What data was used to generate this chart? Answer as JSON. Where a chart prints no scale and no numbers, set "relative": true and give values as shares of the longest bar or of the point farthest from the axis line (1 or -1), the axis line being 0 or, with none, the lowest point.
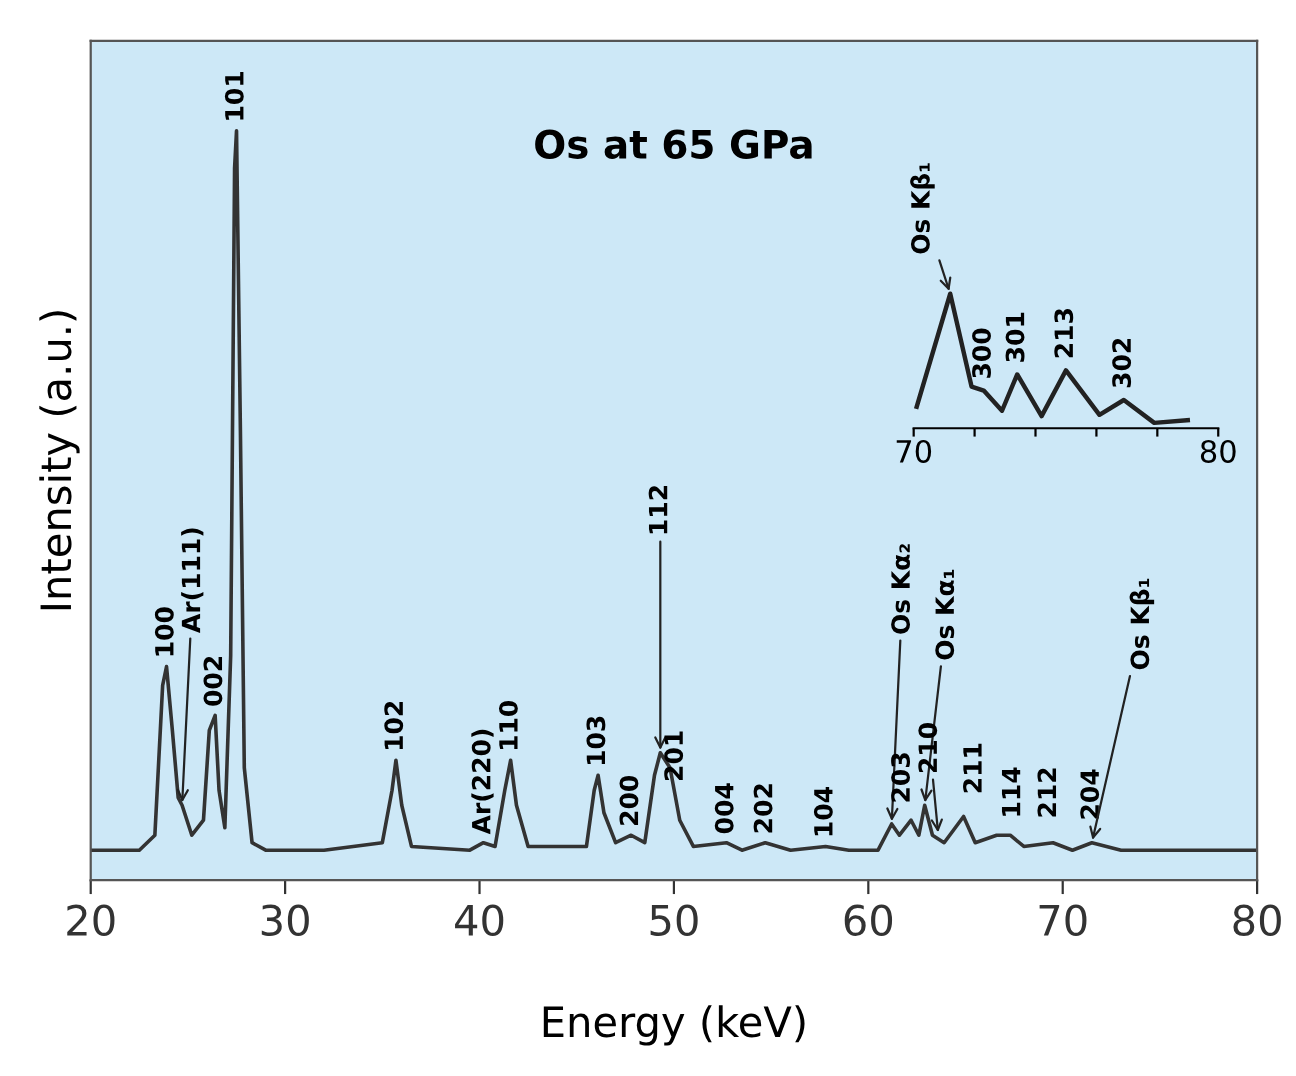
{
  "chart_data": [
    {
      "type": "line",
      "title": "Os at 65 GPa",
      "xlabel": "Energy (keV)",
      "ylabel": "Intensity (a.u.)",
      "relative": true,
      "xlim": [
        20,
        80
      ],
      "xticks": [
        20,
        30,
        40,
        50,
        60,
        70,
        80
      ],
      "grid": false,
      "legend": false,
      "marker": "none",
      "line_style": "solid",
      "series": [
        {
          "color": "#333333",
          "x": [
            20,
            22.5,
            23.3,
            23.7,
            23.9,
            24.2,
            24.5,
            24.7,
            25.2,
            25.8,
            26.1,
            26.4,
            26.6,
            26.9,
            27.2,
            27.4,
            27.5,
            27.7,
            27.9,
            28.3,
            29,
            32,
            35,
            35.5,
            35.7,
            36.0,
            36.5,
            39.5,
            40.2,
            40.8,
            41.3,
            41.6,
            41.9,
            42.5,
            45.5,
            45.9,
            46.1,
            46.4,
            47,
            47.8,
            48.5,
            49.0,
            49.3,
            49.8,
            50.3,
            51,
            52.7,
            53.5,
            54.7,
            56,
            57.8,
            59,
            60.5,
            61.2,
            61.6,
            62.2,
            62.6,
            62.9,
            63.3,
            63.9,
            64.9,
            65.5,
            66.6,
            67.3,
            68,
            69.5,
            70.5,
            71.5,
            73,
            76,
            80
          ],
          "values": [
            0.04,
            0.04,
            0.06,
            0.26,
            0.285,
            0.2,
            0.11,
            0.1,
            0.06,
            0.08,
            0.2,
            0.22,
            0.12,
            0.07,
            0.3,
            0.95,
            1.0,
            0.6,
            0.15,
            0.05,
            0.04,
            0.04,
            0.05,
            0.12,
            0.16,
            0.1,
            0.045,
            0.04,
            0.05,
            0.045,
            0.12,
            0.16,
            0.1,
            0.045,
            0.045,
            0.12,
            0.14,
            0.09,
            0.05,
            0.06,
            0.05,
            0.14,
            0.17,
            0.15,
            0.08,
            0.045,
            0.05,
            0.04,
            0.05,
            0.04,
            0.045,
            0.04,
            0.04,
            0.075,
            0.06,
            0.08,
            0.06,
            0.1,
            0.06,
            0.05,
            0.085,
            0.05,
            0.06,
            0.06,
            0.045,
            0.05,
            0.04,
            0.05,
            0.04,
            0.04,
            0.04
          ]
        }
      ],
      "annotations": [
        {
          "text": "100",
          "x": 23.9,
          "y": 0.285
        },
        {
          "text": "Ar(111)",
          "x": 24.7,
          "y": 0.1
        },
        {
          "text": "002",
          "x": 26.4,
          "y": 0.22
        },
        {
          "text": "101",
          "x": 27.5,
          "y": 1.0
        },
        {
          "text": "102",
          "x": 35.7,
          "y": 0.16
        },
        {
          "text": "Ar(220)",
          "x": 40.2,
          "y": 0.05
        },
        {
          "text": "110",
          "x": 41.6,
          "y": 0.16
        },
        {
          "text": "103",
          "x": 46.1,
          "y": 0.14
        },
        {
          "text": "200",
          "x": 47.8,
          "y": 0.06
        },
        {
          "text": "112",
          "x": 49.3,
          "y": 0.17
        },
        {
          "text": "201",
          "x": 50.1,
          "y": 0.12
        },
        {
          "text": "004",
          "x": 52.7,
          "y": 0.05
        },
        {
          "text": "202",
          "x": 54.7,
          "y": 0.05
        },
        {
          "text": "104",
          "x": 57.8,
          "y": 0.045
        },
        {
          "text": "Os Kα₂",
          "x": 61.2,
          "y": 0.075
        },
        {
          "text": "203",
          "x": 62.2,
          "y": 0.08
        },
        {
          "text": "Os Kα₁",
          "x": 62.9,
          "y": 0.1
        },
        {
          "text": "210",
          "x": 63.6,
          "y": 0.06
        },
        {
          "text": "211",
          "x": 64.9,
          "y": 0.085
        },
        {
          "text": "114",
          "x": 66.6,
          "y": 0.06
        },
        {
          "text": "212",
          "x": 67.3,
          "y": 0.06
        },
        {
          "text": "204",
          "x": 69.5,
          "y": 0.05
        },
        {
          "text": "Os Kβ₁",
          "x": 71.5,
          "y": 0.05
        }
      ]
    },
    {
      "type": "line",
      "relative": true,
      "xlim": [
        70,
        80
      ],
      "xticks": [
        70,
        {
          "value": 72,
          "label": null
        },
        {
          "value": 74,
          "label": null
        },
        {
          "value": 76,
          "label": null
        },
        {
          "value": 78,
          "label": null
        },
        80
      ],
      "grid": false,
      "legend": false,
      "marker": "none",
      "line_style": "solid",
      "series": [
        {
          "color": "#222222",
          "x": [
            70.1,
            71.2,
            71.9,
            72.3,
            72.9,
            73.4,
            74.2,
            75.0,
            76.1,
            76.9,
            77.9,
            79.0
          ],
          "values": [
            0.16,
            1.0,
            0.31,
            0.28,
            0.13,
            0.4,
            0.09,
            0.43,
            0.1,
            0.21,
            0.04,
            0.06
          ]
        }
      ],
      "annotations": [
        {
          "text": "Os Kβ₁",
          "x": 71.2,
          "y": 1.0
        },
        {
          "text": "300",
          "x": 72.3,
          "y": 0.28
        },
        {
          "text": "301",
          "x": 73.4,
          "y": 0.4
        },
        {
          "text": "213",
          "x": 75.0,
          "y": 0.43
        },
        {
          "text": "302",
          "x": 76.9,
          "y": 0.21
        }
      ]
    }
  ]
}
